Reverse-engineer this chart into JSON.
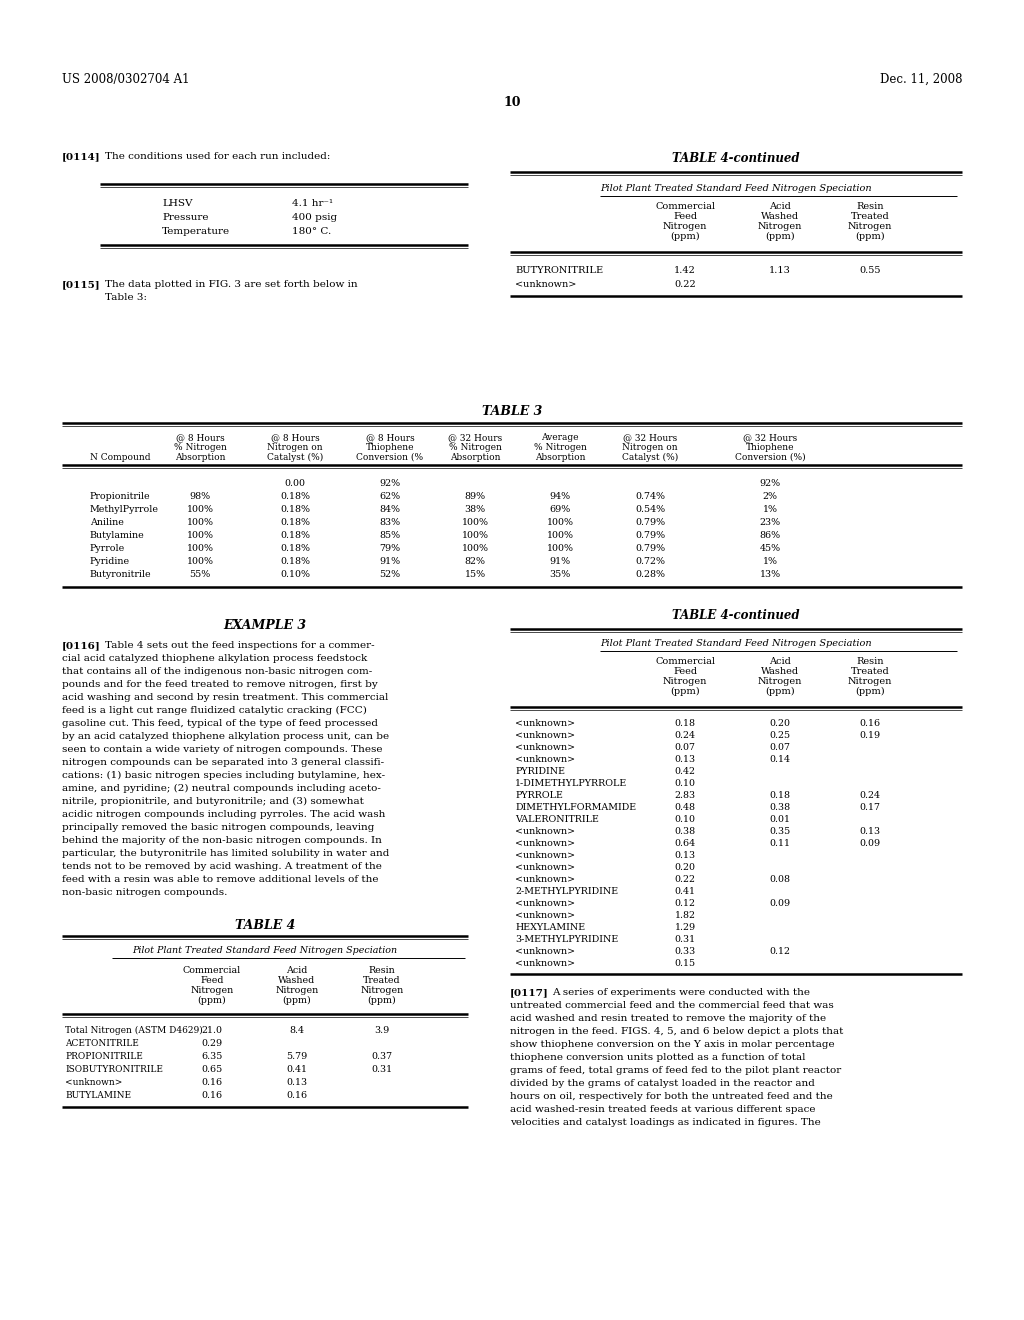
{
  "header_left": "US 2008/0302704 A1",
  "header_right": "Dec. 11, 2008",
  "page_number": "10",
  "para_114_label": "[0114]",
  "para_114_text": "The conditions used for each run included:",
  "conditions_rows": [
    [
      "LHSV",
      "4.1 hr⁻¹"
    ],
    [
      "Pressure",
      "400 psig"
    ],
    [
      "Temperature",
      "180° C."
    ]
  ],
  "table4cont1_title": "TABLE 4-continued",
  "table4cont1_subtitle": "Pilot Plant Treated Standard Feed Nitrogen Speciation",
  "table4cont1_col_headers": [
    "",
    "Commercial\nFeed\nNitrogen\n(ppm)",
    "Acid\nWashed\nNitrogen\n(ppm)",
    "Resin\nTreated\nNitrogen\n(ppm)"
  ],
  "table4cont1_rows": [
    [
      "BUTYRONITRILE",
      "1.42",
      "1.13",
      "0.55"
    ],
    [
      "<unknown>",
      "0.22",
      "",
      ""
    ]
  ],
  "para_115_label": "[0115]",
  "para_115_line1": "The data plotted in FIG. 3 are set forth below in",
  "para_115_line2": "Table 3:",
  "table3_title": "TABLE 3",
  "table3_col_headers": [
    "@ 8 Hours\n% Nitrogen\nAbsorption",
    "@ 8 Hours\nNitrogen on\nCatalyst (%)",
    "@ 8 Hours\nThiophene\nConversion (%",
    "@ 32 Hours\n% Nitrogen\nAbsorption",
    "Average\n% Nitrogen\nAbsorption",
    "@ 32 Hours\nNitrogen on\nCatalyst (%)",
    "@ 32 Hours\nThiophene\nConversion (%)"
  ],
  "table3_ncompound_label": "N Compound",
  "table3_blank_row_col2": "0.00",
  "table3_blank_row_col3": "92%",
  "table3_blank_row_col7": "92%",
  "table3_rows": [
    [
      "Propionitrile",
      "98%",
      "0.18%",
      "62%",
      "89%",
      "94%",
      "0.74%",
      "2%"
    ],
    [
      "MethylPyrrole",
      "100%",
      "0.18%",
      "84%",
      "38%",
      "69%",
      "0.54%",
      "1%"
    ],
    [
      "Aniline",
      "100%",
      "0.18%",
      "83%",
      "100%",
      "100%",
      "0.79%",
      "23%"
    ],
    [
      "Butylamine",
      "100%",
      "0.18%",
      "85%",
      "100%",
      "100%",
      "0.79%",
      "86%"
    ],
    [
      "Pyrrole",
      "100%",
      "0.18%",
      "79%",
      "100%",
      "100%",
      "0.79%",
      "45%"
    ],
    [
      "Pyridine",
      "100%",
      "0.18%",
      "91%",
      "82%",
      "91%",
      "0.72%",
      "1%"
    ],
    [
      "Butyronitrile",
      "55%",
      "0.10%",
      "52%",
      "15%",
      "35%",
      "0.28%",
      "13%"
    ]
  ],
  "example3_title": "EXAMPLE 3",
  "para_116_label": "[0116]",
  "para_116_lines": [
    "Table 4 sets out the feed inspections for a commer-",
    "cial acid catalyzed thiophene alkylation process feedstock",
    "that contains all of the indigenous non-basic nitrogen com-",
    "pounds and for the feed treated to remove nitrogen, first by",
    "acid washing and second by resin treatment. This commercial",
    "feed is a light cut range fluidized catalytic cracking (FCC)",
    "gasoline cut. This feed, typical of the type of feed processed",
    "by an acid catalyzed thiophene alkylation process unit, can be",
    "seen to contain a wide variety of nitrogen compounds. These",
    "nitrogen compounds can be separated into 3 general classifi-",
    "cations: (1) basic nitrogen species including butylamine, hex-",
    "amine, and pyridine; (2) neutral compounds including aceto-",
    "nitrile, propionitrile, and butyronitrile; and (3) somewhat",
    "acidic nitrogen compounds including pyrroles. The acid wash",
    "principally removed the basic nitrogen compounds, leaving",
    "behind the majority of the non-basic nitrogen compounds. In",
    "particular, the butyronitrile has limited solubility in water and",
    "tends not to be removed by acid washing. A treatment of the",
    "feed with a resin was able to remove additional levels of the",
    "non-basic nitrogen compounds."
  ],
  "table4_title": "TABLE 4",
  "table4_subtitle": "Pilot Plant Treated Standard Feed Nitrogen Speciation",
  "table4_col_headers": [
    "",
    "Commercial\nFeed\nNitrogen\n(ppm)",
    "Acid\nWashed\nNitrogen\n(ppm)",
    "Resin\nTreated\nNitrogen\n(ppm)"
  ],
  "table4_rows": [
    [
      "Total Nitrogen (ASTM D4629)",
      "21.0",
      "8.4",
      "3.9"
    ],
    [
      "ACETONITRILE",
      "0.29",
      "",
      ""
    ],
    [
      "PROPIONITRILE",
      "6.35",
      "5.79",
      "0.37"
    ],
    [
      "ISOBUTYRONITRILE",
      "0.65",
      "0.41",
      "0.31"
    ],
    [
      "<unknown>",
      "0.16",
      "0.13",
      ""
    ],
    [
      "BUTYLAMINE",
      "0.16",
      "0.16",
      ""
    ]
  ],
  "table4cont2_title": "TABLE 4-continued",
  "table4cont2_subtitle": "Pilot Plant Treated Standard Feed Nitrogen Speciation",
  "table4cont2_col_headers": [
    "",
    "Commercial\nFeed\nNitrogen\n(ppm)",
    "Acid\nWashed\nNitrogen\n(ppm)",
    "Resin\nTreated\nNitrogen\n(ppm)"
  ],
  "table4cont2_rows": [
    [
      "<unknown>",
      "0.18",
      "0.20",
      "0.16"
    ],
    [
      "<unknown>",
      "0.24",
      "0.25",
      "0.19"
    ],
    [
      "<unknown>",
      "0.07",
      "0.07",
      ""
    ],
    [
      "<unknown>",
      "0.13",
      "0.14",
      ""
    ],
    [
      "PYRIDINE",
      "0.42",
      "",
      ""
    ],
    [
      "1-DIMETHYLPYRROLE",
      "0.10",
      "",
      ""
    ],
    [
      "PYRROLE",
      "2.83",
      "0.18",
      "0.24"
    ],
    [
      "DIMETHYLFORMAMIDE",
      "0.48",
      "0.38",
      "0.17"
    ],
    [
      "VALERONITRILE",
      "0.10",
      "0.01",
      ""
    ],
    [
      "<unknown>",
      "0.38",
      "0.35",
      "0.13"
    ],
    [
      "<unknown>",
      "0.64",
      "0.11",
      "0.09"
    ],
    [
      "<unknown>",
      "0.13",
      "",
      ""
    ],
    [
      "<unknown>",
      "0.20",
      "",
      ""
    ],
    [
      "<unknown>",
      "0.22",
      "0.08",
      ""
    ],
    [
      "2-METHYLPYRIDINE",
      "0.41",
      "",
      ""
    ],
    [
      "<unknown>",
      "0.12",
      "0.09",
      ""
    ],
    [
      "<unknown>",
      "1.82",
      "",
      ""
    ],
    [
      "HEXYLAMINE",
      "1.29",
      "",
      ""
    ],
    [
      "3-METHYLPYRIDINE",
      "0.31",
      "",
      ""
    ],
    [
      "<unknown>",
      "0.33",
      "0.12",
      ""
    ],
    [
      "<unknown>",
      "0.15",
      "",
      ""
    ]
  ],
  "para_117_label": "[0117]",
  "para_117_lines": [
    "A series of experiments were conducted with the",
    "untreated commercial feed and the commercial feed that was",
    "acid washed and resin treated to remove the majority of the",
    "nitrogen in the feed. FIGS. 4, 5, and 6 below depict a plots that",
    "show thiophene conversion on the Y axis in molar percentage",
    "thiophene conversion units plotted as a function of total",
    "grams of feed, total grams of feed fed to the pilot plant reactor",
    "divided by the grams of catalyst loaded in the reactor and",
    "hours on oil, respectively for both the untreated feed and the",
    "acid washed-resin treated feeds at various different space",
    "velocities and catalyst loadings as indicated in figures. The"
  ]
}
